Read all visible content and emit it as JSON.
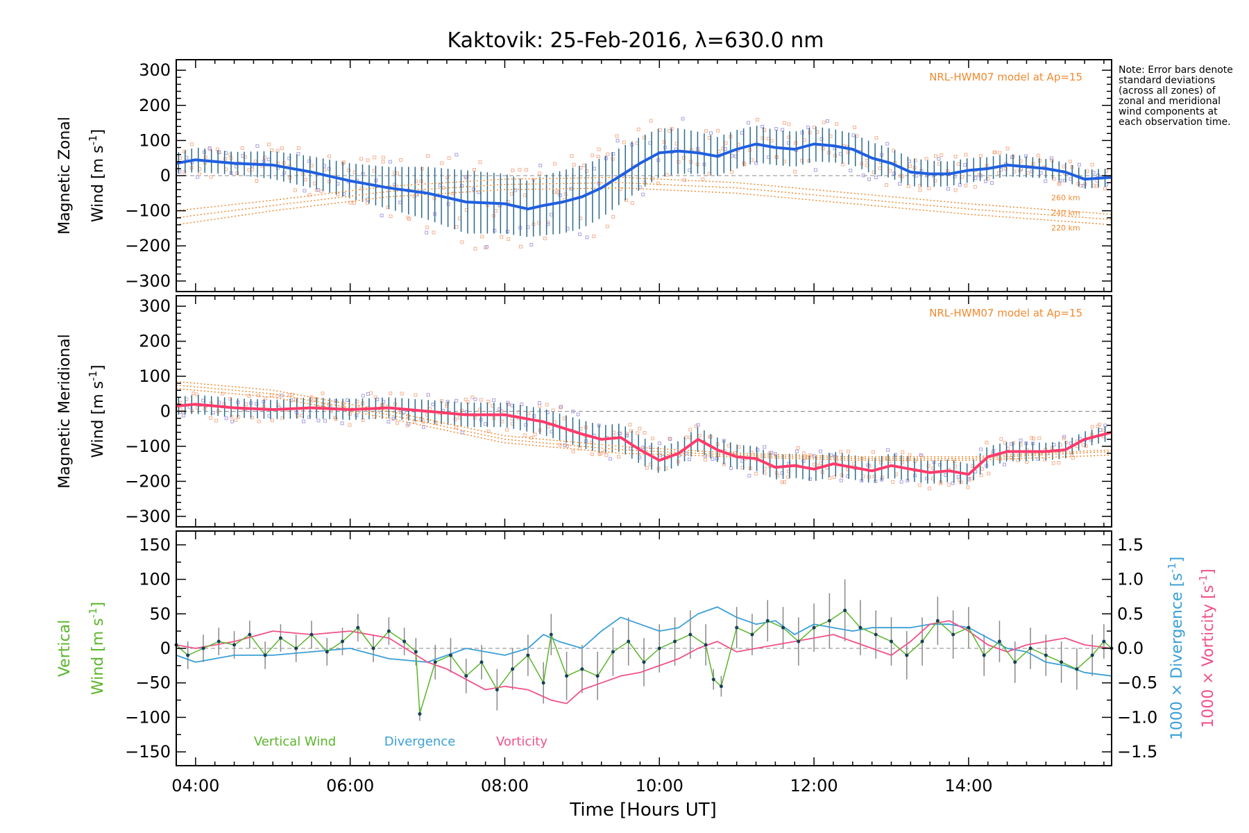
{
  "figure": {
    "title": "Kaktovik: 25-Feb-2016, λ=630.0 nm",
    "note": "Note: Error bars denote standard deviations (across all zones) of zonal and meridional wind components at each observation time.",
    "xlabel": "Time [Hours UT]",
    "x_ticks": [
      "04:00",
      "06:00",
      "08:00",
      "10:00",
      "12:00",
      "14:00"
    ],
    "model_label": "NRL-HWM07 model at Ap=15",
    "altitude_labels": [
      "260 km",
      "240 km",
      "220 km"
    ]
  },
  "colors": {
    "zonal": "#1f5fe0",
    "meridional": "#ff3a6a",
    "vertical": "#5ab52a",
    "divergence": "#3a9fd6",
    "vorticity": "#f0508a",
    "model": "#f08a30",
    "errorbar": "#2a6a8a",
    "scatter_orange": "#f5b090",
    "scatter_purple": "#a8a0e0"
  },
  "chart_data": [
    {
      "type": "line",
      "panel": "zonal",
      "ylabel_1": "Magnetic Zonal",
      "ylabel_2": "Wind [m s",
      "ylabel_sup": "-1",
      "ylabel_3": "]",
      "ylim": [
        -330,
        330
      ],
      "yticks": [
        300,
        200,
        100,
        0,
        -100,
        -200,
        -300
      ],
      "x_hours": [
        3.75,
        4.0,
        4.5,
        5.0,
        5.5,
        6.0,
        6.5,
        7.0,
        7.5,
        8.0,
        8.3,
        8.5,
        8.75,
        9.0,
        9.25,
        9.5,
        9.75,
        10.0,
        10.25,
        10.5,
        10.75,
        11.0,
        11.25,
        11.5,
        11.75,
        12.0,
        12.25,
        12.5,
        12.75,
        13.0,
        13.25,
        13.5,
        13.75,
        14.0,
        14.25,
        14.5,
        14.75,
        15.0,
        15.25,
        15.5,
        15.85
      ],
      "values": [
        35,
        45,
        35,
        30,
        10,
        -15,
        -35,
        -50,
        -75,
        -80,
        -95,
        -85,
        -75,
        -60,
        -35,
        0,
        35,
        65,
        70,
        65,
        55,
        75,
        90,
        80,
        75,
        90,
        85,
        75,
        50,
        35,
        10,
        5,
        5,
        15,
        20,
        30,
        25,
        20,
        10,
        -10,
        -5
      ],
      "error": [
        60,
        70,
        65,
        80,
        90,
        100,
        120,
        150,
        180,
        170,
        160,
        170,
        180,
        180,
        170,
        160,
        150,
        140,
        130,
        120,
        110,
        110,
        105,
        100,
        100,
        100,
        95,
        90,
        90,
        85,
        80,
        75,
        70,
        70,
        65,
        65,
        60,
        55,
        55,
        55,
        50
      ],
      "model_series": [
        {
          "name": "260 km",
          "x": [
            3.75,
            5.0,
            6.5,
            8.0,
            9.5,
            11.0,
            12.5,
            14.0,
            15.85
          ],
          "values": [
            -100,
            -70,
            -30,
            -10,
            -5,
            -20,
            -50,
            -80,
            -110
          ]
        },
        {
          "name": "240 km",
          "x": [
            3.75,
            5.0,
            6.5,
            8.0,
            9.5,
            11.0,
            12.5,
            14.0,
            15.85
          ],
          "values": [
            -120,
            -85,
            -45,
            -25,
            -20,
            -35,
            -65,
            -95,
            -125
          ]
        },
        {
          "name": "220 km",
          "x": [
            3.75,
            5.0,
            6.5,
            8.0,
            9.5,
            11.0,
            12.5,
            14.0,
            15.85
          ],
          "values": [
            -140,
            -100,
            -60,
            -40,
            -35,
            -50,
            -80,
            -110,
            -140
          ]
        }
      ]
    },
    {
      "type": "line",
      "panel": "meridional",
      "ylabel_1": "Magnetic Meridional",
      "ylabel_2": "Wind [m s",
      "ylabel_sup": "-1",
      "ylabel_3": "]",
      "ylim": [
        -330,
        330
      ],
      "yticks": [
        300,
        200,
        100,
        0,
        -100,
        -200,
        -300
      ],
      "x_hours": [
        3.75,
        4.0,
        4.5,
        5.0,
        5.5,
        6.0,
        6.5,
        7.0,
        7.5,
        8.0,
        8.5,
        9.0,
        9.25,
        9.5,
        9.75,
        10.0,
        10.25,
        10.5,
        10.75,
        11.0,
        11.25,
        11.5,
        11.75,
        12.0,
        12.25,
        12.5,
        12.75,
        13.0,
        13.25,
        13.5,
        13.75,
        14.0,
        14.25,
        14.5,
        14.75,
        15.0,
        15.25,
        15.5,
        15.85
      ],
      "values": [
        15,
        20,
        10,
        5,
        10,
        5,
        10,
        0,
        -10,
        -10,
        -30,
        -65,
        -80,
        -75,
        -110,
        -140,
        -120,
        -80,
        -110,
        -130,
        -135,
        -160,
        -155,
        -165,
        -150,
        -160,
        -170,
        -155,
        -165,
        -175,
        -170,
        -180,
        -130,
        -115,
        -115,
        -115,
        -110,
        -80,
        -60
      ],
      "error": [
        50,
        55,
        55,
        55,
        60,
        60,
        60,
        65,
        70,
        70,
        75,
        80,
        80,
        80,
        80,
        75,
        70,
        70,
        70,
        70,
        70,
        70,
        70,
        70,
        70,
        70,
        70,
        70,
        70,
        65,
        65,
        60,
        60,
        55,
        55,
        50,
        50,
        45,
        45
      ],
      "model_series": [
        {
          "name": "260 km",
          "x": [
            3.75,
            5.0,
            6.5,
            8.0,
            9.5,
            11.0,
            12.5,
            14.0,
            15.85
          ],
          "values": [
            85,
            60,
            0,
            -70,
            -100,
            -120,
            -130,
            -130,
            -110
          ]
        },
        {
          "name": "240 km",
          "x": [
            3.75,
            5.0,
            6.5,
            8.0,
            9.5,
            11.0,
            12.5,
            14.0,
            15.85
          ],
          "values": [
            75,
            50,
            -10,
            -80,
            -110,
            -125,
            -135,
            -135,
            -115
          ]
        },
        {
          "name": "220 km",
          "x": [
            3.75,
            5.0,
            6.5,
            8.0,
            9.5,
            11.0,
            12.5,
            14.0,
            15.85
          ],
          "values": [
            65,
            40,
            -20,
            -90,
            -120,
            -130,
            -140,
            -140,
            -125
          ]
        }
      ]
    },
    {
      "type": "line",
      "panel": "vertical",
      "ylabel_left_1": "Vertical",
      "ylabel_left_2": "Wind [m s",
      "ylabel_left_sup": "-1",
      "ylabel_left_3": "]",
      "ylabel_right_div": "1000 × Divergence [s",
      "ylabel_right_vort": "1000 × Vorticity [s",
      "ylabel_right_sup": "-1",
      "ylabel_right_end": "]",
      "ylim": [
        -170,
        170
      ],
      "yticks": [
        150,
        100,
        50,
        0,
        -50,
        -100,
        -150
      ],
      "y2lim": [
        -1.7,
        1.7
      ],
      "y2ticks": [
        "1.5",
        "1.0",
        "0.5",
        "0.0",
        "-0.5",
        "-1.0",
        "-1.5"
      ],
      "legend": [
        "Vertical Wind",
        "Divergence",
        "Vorticity"
      ],
      "vertical_wind": {
        "x": [
          3.75,
          3.9,
          4.1,
          4.3,
          4.5,
          4.7,
          4.9,
          5.1,
          5.3,
          5.5,
          5.7,
          5.9,
          6.1,
          6.3,
          6.5,
          6.7,
          6.85,
          6.9,
          7.1,
          7.3,
          7.5,
          7.7,
          7.9,
          8.1,
          8.3,
          8.5,
          8.6,
          8.8,
          9.0,
          9.2,
          9.4,
          9.6,
          9.8,
          10.0,
          10.2,
          10.4,
          10.6,
          10.7,
          10.8,
          11.0,
          11.2,
          11.4,
          11.6,
          11.8,
          12.0,
          12.2,
          12.4,
          12.6,
          12.8,
          13.0,
          13.2,
          13.4,
          13.6,
          13.8,
          14.0,
          14.2,
          14.4,
          14.6,
          14.8,
          15.0,
          15.2,
          15.4,
          15.6,
          15.75,
          15.85
        ],
        "values": [
          5,
          -10,
          0,
          10,
          5,
          20,
          -10,
          15,
          0,
          20,
          -5,
          10,
          30,
          0,
          25,
          10,
          -5,
          -95,
          -20,
          -10,
          -40,
          -20,
          -60,
          -30,
          -10,
          -50,
          20,
          -40,
          -30,
          -40,
          -5,
          10,
          -20,
          0,
          10,
          20,
          5,
          -45,
          -55,
          30,
          20,
          40,
          30,
          10,
          30,
          40,
          55,
          30,
          20,
          10,
          -10,
          10,
          40,
          20,
          30,
          -10,
          10,
          -20,
          0,
          -10,
          -20,
          -30,
          -10,
          10,
          0
        ],
        "error": [
          15,
          20,
          20,
          20,
          20,
          20,
          20,
          20,
          20,
          20,
          20,
          20,
          20,
          20,
          20,
          20,
          20,
          10,
          25,
          25,
          25,
          25,
          30,
          30,
          30,
          30,
          30,
          35,
          35,
          35,
          35,
          35,
          35,
          35,
          35,
          35,
          30,
          15,
          15,
          30,
          30,
          30,
          30,
          35,
          35,
          40,
          45,
          40,
          35,
          35,
          35,
          35,
          35,
          35,
          30,
          30,
          30,
          30,
          30,
          30,
          30,
          30,
          30,
          25,
          20
        ]
      },
      "divergence": {
        "x": [
          3.75,
          4.0,
          4.5,
          5.0,
          5.5,
          6.0,
          6.5,
          7.0,
          7.5,
          8.0,
          8.3,
          8.5,
          8.7,
          9.0,
          9.25,
          9.5,
          9.75,
          10.0,
          10.25,
          10.5,
          10.75,
          11.0,
          11.25,
          11.5,
          11.75,
          12.0,
          12.25,
          12.5,
          12.75,
          13.0,
          13.25,
          13.5,
          13.75,
          14.0,
          14.25,
          14.5,
          14.75,
          15.0,
          15.25,
          15.5,
          15.85
        ],
        "values": [
          -0.1,
          -0.2,
          -0.1,
          -0.1,
          -0.05,
          0.0,
          -0.15,
          -0.2,
          0.0,
          -0.1,
          0.0,
          0.2,
          0.1,
          0.0,
          0.25,
          0.45,
          0.35,
          0.25,
          0.3,
          0.5,
          0.6,
          0.45,
          0.35,
          0.4,
          0.2,
          0.35,
          0.3,
          0.25,
          0.3,
          0.3,
          0.3,
          0.35,
          0.35,
          0.3,
          0.15,
          0.0,
          -0.05,
          -0.2,
          -0.25,
          -0.35,
          -0.4
        ]
      },
      "vorticity": {
        "x": [
          3.75,
          4.0,
          4.5,
          5.0,
          5.5,
          6.0,
          6.5,
          7.0,
          7.25,
          7.5,
          7.75,
          8.0,
          8.3,
          8.6,
          8.8,
          9.0,
          9.25,
          9.5,
          9.75,
          10.0,
          10.25,
          10.5,
          10.75,
          11.0,
          11.25,
          11.5,
          11.75,
          12.0,
          12.25,
          12.5,
          12.75,
          13.0,
          13.25,
          13.5,
          13.75,
          14.0,
          14.25,
          14.5,
          14.75,
          15.0,
          15.25,
          15.5,
          15.85
        ],
        "values": [
          0.05,
          0.0,
          0.1,
          0.25,
          0.2,
          0.25,
          0.15,
          -0.2,
          -0.3,
          -0.45,
          -0.6,
          -0.55,
          -0.6,
          -0.75,
          -0.8,
          -0.6,
          -0.5,
          -0.4,
          -0.35,
          -0.25,
          -0.15,
          0.0,
          0.1,
          -0.05,
          0.0,
          0.05,
          0.1,
          0.15,
          0.2,
          0.1,
          0.0,
          -0.1,
          0.1,
          0.35,
          0.4,
          0.25,
          0.05,
          -0.05,
          0.05,
          0.1,
          0.15,
          0.05,
          0.0
        ]
      }
    }
  ]
}
